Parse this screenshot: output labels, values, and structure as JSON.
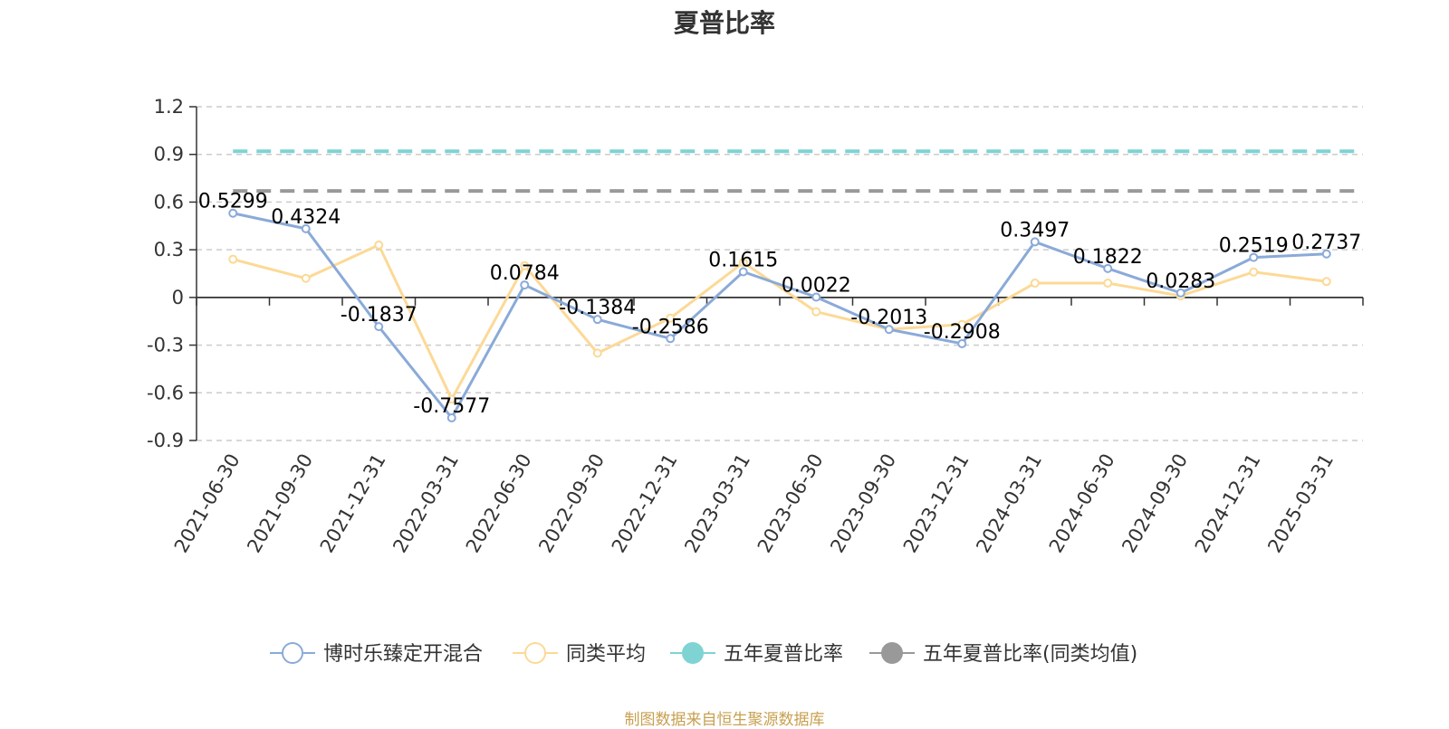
{
  "chart_data": {
    "type": "line",
    "title": "夏普比率",
    "xlabel": "",
    "ylabel": "",
    "ylim": [
      -0.9,
      1.2
    ],
    "yticks": [
      "1.2",
      "0.9",
      "0.6",
      "0.3",
      "0",
      "-0.3",
      "-0.6",
      "-0.9"
    ],
    "yticks_values": [
      1.2,
      0.9,
      0.6,
      0.3,
      0,
      -0.3,
      -0.6,
      -0.9
    ],
    "grid": true,
    "legend_position": "bottom",
    "categories": [
      "2021-06-30",
      "2021-09-30",
      "2021-12-31",
      "2022-03-31",
      "2022-06-30",
      "2022-09-30",
      "2022-12-31",
      "2023-03-31",
      "2023-06-30",
      "2023-09-30",
      "2023-12-31",
      "2024-03-31",
      "2024-06-30",
      "2024-09-30",
      "2024-12-31",
      "2025-03-31"
    ],
    "series": [
      {
        "name": "博时乐臻定开混合",
        "color": "#8aaad8",
        "values": [
          0.5299,
          0.4324,
          -0.1837,
          -0.7577,
          0.0784,
          -0.1384,
          -0.2586,
          0.1615,
          0.0022,
          -0.2013,
          -0.2908,
          0.3497,
          0.1822,
          0.0283,
          0.2519,
          0.2737
        ],
        "labels": [
          "0.5299",
          "0.4324",
          "-0.1837",
          "-0.7577",
          "0.0784",
          "-0.1384",
          "-0.2586",
          "0.1615",
          "0.0022",
          "-0.2013",
          "-0.2908",
          "0.3497",
          "0.1822",
          "0.0283",
          "0.2519",
          "0.2737"
        ]
      },
      {
        "name": "同类平均",
        "color": "#fcd996",
        "values": [
          0.24,
          0.12,
          0.33,
          -0.64,
          0.2,
          -0.35,
          -0.13,
          0.22,
          -0.09,
          -0.2,
          -0.17,
          0.09,
          0.09,
          0.01,
          0.16,
          0.1
        ]
      },
      {
        "name": "五年夏普比率",
        "color": "#7fd3d3",
        "style": "dashed",
        "value": 0.92
      },
      {
        "name": "五年夏普比率(同类均值)",
        "color": "#999999",
        "style": "dashed",
        "value": 0.67
      }
    ]
  },
  "footer": {
    "source": "制图数据来自恒生聚源数据库"
  }
}
